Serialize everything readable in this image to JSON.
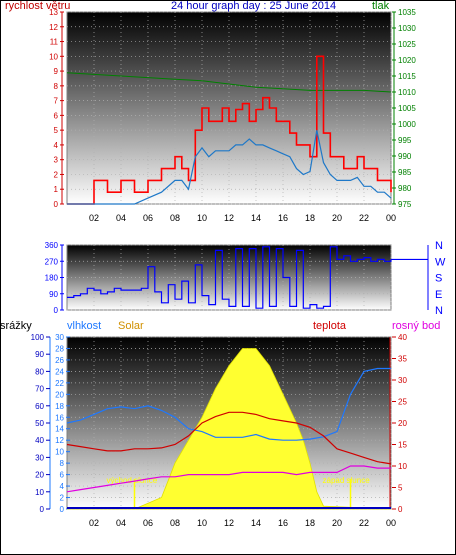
{
  "header": {
    "left_label": "rychlost větru",
    "title": "24 hour graph day : 25 June 2014",
    "right_label": "tlak"
  },
  "panel3_labels": {
    "rain": "srážky",
    "humidity": "vlhkost",
    "solar": "Solar",
    "temperature": "teplota",
    "dewpoint": "rosný bod",
    "sunrise": "východ slunce",
    "sunset": "západ slunce"
  },
  "colors": {
    "wind": "#ff0000",
    "wind_avg": "#1e78c8",
    "pressure": "#008000",
    "direction": "#0000ff",
    "humidity": "#1e78ff",
    "temperature": "#d00000",
    "dewpoint": "#e000e0",
    "solar": "#ffff30",
    "rain": "#0000c0"
  },
  "x_ticks": [
    "02",
    "04",
    "06",
    "08",
    "10",
    "12",
    "14",
    "16",
    "18",
    "20",
    "22",
    "00"
  ],
  "chart_data": [
    {
      "type": "line",
      "name": "wind-pressure",
      "ylim_left": [
        0,
        13
      ],
      "ylim_right": [
        975,
        1035
      ],
      "left_ticks": [
        "0",
        "1",
        "2",
        "3",
        "4",
        "5",
        "6",
        "7",
        "8",
        "9",
        "10",
        "11",
        "12",
        "13"
      ],
      "right_ticks": [
        "975",
        "980",
        "985",
        "990",
        "995",
        "1000",
        "1005",
        "1010",
        "1015",
        "1020",
        "1025",
        "1030",
        "1035"
      ],
      "x": [
        0,
        1,
        2,
        3,
        4,
        5,
        6,
        7,
        8,
        8.5,
        9,
        9.5,
        10,
        10.5,
        11,
        11.5,
        12,
        12.5,
        13,
        13.5,
        14,
        14.5,
        15,
        15.5,
        16,
        16.5,
        17,
        17.5,
        18,
        18.5,
        19,
        19.5,
        20,
        20.5,
        21,
        21.5,
        22,
        22.5,
        23,
        23.5,
        24
      ],
      "gust": [
        0,
        0,
        1.6,
        0.8,
        1.6,
        0.8,
        1.6,
        2.4,
        3.2,
        2.4,
        1.6,
        5.0,
        6.5,
        5.6,
        5.6,
        6.5,
        5.6,
        6.4,
        6.8,
        5.6,
        6.4,
        7.2,
        6.5,
        5.6,
        5.6,
        4.8,
        4.0,
        4.0,
        3.2,
        10.0,
        4.8,
        3.2,
        3.2,
        2.4,
        2.4,
        3.2,
        2.4,
        2.4,
        1.6,
        1.6,
        0.8
      ],
      "average": [
        0,
        0,
        0,
        0,
        0,
        0,
        0.4,
        0.8,
        1.6,
        1.6,
        1.0,
        3.2,
        3.8,
        3.2,
        3.6,
        3.6,
        3.6,
        4.0,
        4.0,
        4.4,
        4.0,
        4.0,
        3.8,
        3.6,
        3.4,
        3.2,
        2.4,
        2.0,
        2.2,
        5.0,
        2.8,
        2.0,
        1.6,
        1.6,
        1.6,
        1.8,
        1.2,
        1.2,
        0.8,
        0.8,
        0.4
      ],
      "pressure_x": [
        0,
        2,
        4,
        6,
        8,
        10,
        12,
        14,
        16,
        18,
        20,
        22,
        24
      ],
      "pressure": [
        1016,
        1015.5,
        1015,
        1014.5,
        1014,
        1013.5,
        1012.5,
        1011.5,
        1011,
        1010.5,
        1010.5,
        1010.5,
        1010
      ]
    },
    {
      "type": "scatter",
      "name": "wind-direction",
      "ylim": [
        0,
        360
      ],
      "left_ticks": [
        "0",
        "90",
        "180",
        "270",
        "360"
      ],
      "right_ticks": [
        "N",
        "E",
        "S",
        "W",
        "N"
      ],
      "x": [
        0,
        0.5,
        1,
        1.5,
        2,
        2.5,
        3,
        3.5,
        4,
        4.5,
        5,
        5.5,
        6,
        6.5,
        7,
        7.5,
        8,
        8.5,
        9,
        9.5,
        10,
        10.5,
        11,
        11.5,
        12,
        12.5,
        13,
        13.5,
        14,
        14.5,
        15,
        15.5,
        16,
        16.5,
        17,
        17.5,
        18,
        18.5,
        19,
        19.5,
        20,
        20.5,
        21,
        21.5,
        22,
        22.5,
        23,
        23.5,
        24
      ],
      "values": [
        70,
        80,
        90,
        120,
        110,
        90,
        100,
        120,
        110,
        110,
        110,
        120,
        240,
        100,
        40,
        140,
        60,
        160,
        40,
        250,
        80,
        30,
        330,
        60,
        20,
        340,
        20,
        340,
        10,
        350,
        20,
        340,
        180,
        20,
        330,
        10,
        30,
        10,
        20,
        350,
        280,
        300,
        270,
        280,
        290,
        270,
        280,
        270,
        280
      ]
    },
    {
      "type": "line",
      "name": "humidity-solar-temperature",
      "ylim_rain": [
        0,
        100
      ],
      "ylim_humidity": [
        0,
        30
      ],
      "ylim_temperature": [
        0,
        40
      ],
      "rain_ticks": [
        "0",
        "10",
        "20",
        "30",
        "40",
        "50",
        "60",
        "70",
        "80",
        "90",
        "100"
      ],
      "humidity_ticks": [
        "0",
        "2",
        "4",
        "6",
        "8",
        "10",
        "12",
        "14",
        "16",
        "18",
        "20",
        "22",
        "24",
        "26",
        "28",
        "30"
      ],
      "temperature_ticks": [
        "0",
        "5",
        "10",
        "15",
        "20",
        "25",
        "30",
        "35",
        "40"
      ],
      "x": [
        0,
        1,
        2,
        3,
        4,
        5,
        6,
        7,
        8,
        9,
        10,
        11,
        12,
        13,
        14,
        15,
        16,
        17,
        18,
        19,
        20,
        21,
        22,
        23,
        24
      ],
      "humidity": [
        15.0,
        15.5,
        16.5,
        17.5,
        17.8,
        17.5,
        18.0,
        17.2,
        16.0,
        14.0,
        13.5,
        12.5,
        12.5,
        12.5,
        13.0,
        12.2,
        12.0,
        12.0,
        12.2,
        12.6,
        13.5,
        20.0,
        24.0,
        24.5,
        24.5
      ],
      "temperature": [
        15.0,
        14.5,
        14.0,
        13.5,
        13.5,
        14.0,
        14.0,
        14.2,
        15.0,
        17.0,
        20.0,
        21.5,
        22.5,
        22.5,
        22.0,
        21.0,
        20.5,
        20.0,
        19.0,
        17.0,
        14.0,
        13.0,
        12.0,
        11.0,
        10.5
      ],
      "dewpoint": [
        4.0,
        4.5,
        5.0,
        5.5,
        6.0,
        6.5,
        7.0,
        7.5,
        7.5,
        8.0,
        8.0,
        8.0,
        8.0,
        8.5,
        8.5,
        8.5,
        8.5,
        8.0,
        8.5,
        8.5,
        8.5,
        10.0,
        10.0,
        9.5,
        9.5
      ],
      "solar_x": [
        0,
        5,
        6,
        7,
        7.5,
        8,
        9,
        10,
        11,
        12,
        13,
        14,
        15,
        16,
        17,
        17.5,
        18,
        18.5,
        19,
        24
      ],
      "solar": [
        0,
        0,
        1.0,
        2.0,
        5.0,
        8.0,
        12.0,
        16.0,
        21.0,
        25.0,
        28.0,
        28.0,
        25.0,
        20.0,
        15.0,
        12.0,
        8.0,
        3.0,
        0.5,
        0
      ],
      "sunrise_x": 5,
      "sunset_x": 21
    }
  ]
}
